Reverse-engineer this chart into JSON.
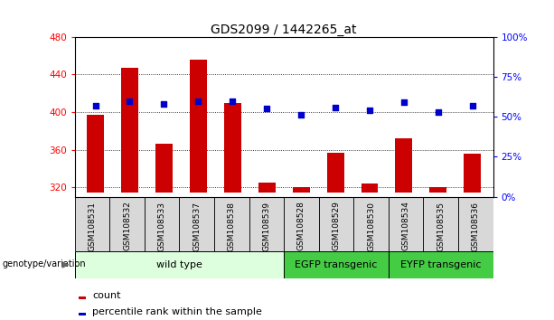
{
  "title": "GDS2099 / 1442265_at",
  "samples": [
    "GSM108531",
    "GSM108532",
    "GSM108533",
    "GSM108537",
    "GSM108538",
    "GSM108539",
    "GSM108528",
    "GSM108529",
    "GSM108530",
    "GSM108534",
    "GSM108535",
    "GSM108536"
  ],
  "counts": [
    397,
    447,
    366,
    456,
    410,
    325,
    320,
    357,
    324,
    372,
    320,
    356
  ],
  "percentiles": [
    57,
    60,
    58,
    60,
    60,
    55,
    51,
    56,
    54,
    59,
    53,
    57
  ],
  "ylim_left": [
    310,
    480
  ],
  "ylim_right": [
    0,
    100
  ],
  "yticks_left": [
    320,
    360,
    400,
    440,
    480
  ],
  "yticks_right": [
    0,
    25,
    50,
    75,
    100
  ],
  "bar_color": "#cc0000",
  "dot_color": "#0000cc",
  "bar_bottom": 315,
  "groups": [
    {
      "label": "wild type",
      "start": 0,
      "end": 6,
      "color": "#ddffdd"
    },
    {
      "label": "EGFP transgenic",
      "start": 6,
      "end": 9,
      "color": "#44cc44"
    },
    {
      "label": "EYFP transgenic",
      "start": 9,
      "end": 12,
      "color": "#44cc44"
    }
  ],
  "group_row_label": "genotype/variation",
  "legend_count_label": "count",
  "legend_pct_label": "percentile rank within the sample",
  "title_fontsize": 10,
  "tick_fontsize": 7.5,
  "sample_fontsize": 6.5,
  "group_fontsize": 8,
  "legend_fontsize": 8,
  "grid_color": "#000000",
  "background_color": "#ffffff"
}
